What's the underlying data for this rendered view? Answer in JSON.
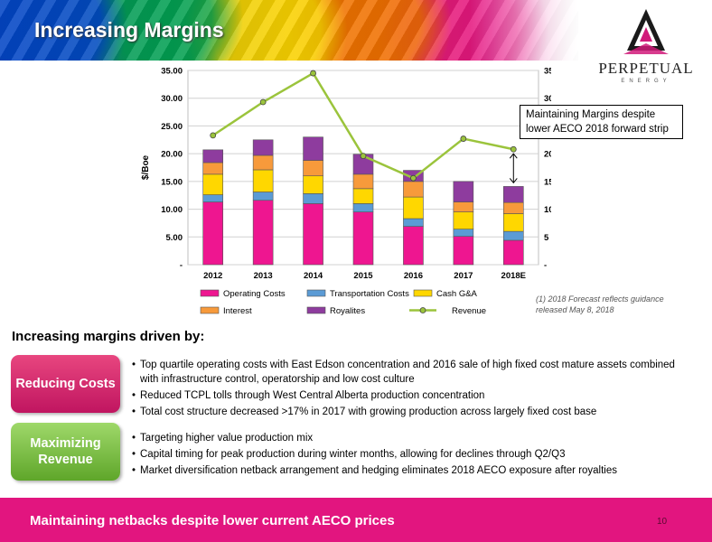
{
  "header": {
    "title": "Increasing Margins"
  },
  "logo": {
    "name": "PERPETUAL",
    "sub": "ENERGY"
  },
  "chart_data": {
    "type": "bar",
    "stacked": true,
    "categories": [
      "2012",
      "2013",
      "2014",
      "2015",
      "2016",
      "2017",
      "2018E"
    ],
    "series": [
      {
        "name": "Operating Costs",
        "values": [
          11.3,
          11.6,
          11.0,
          9.5,
          6.9,
          5.1,
          4.4
        ],
        "color": "#ee1690"
      },
      {
        "name": "Transportation Costs",
        "values": [
          1.3,
          1.5,
          1.8,
          1.5,
          1.4,
          1.3,
          1.6
        ],
        "color": "#5b9bd5"
      },
      {
        "name": "Cash G&A",
        "values": [
          3.7,
          4.0,
          3.2,
          2.7,
          3.9,
          3.1,
          3.2
        ],
        "color": "#ffd700"
      },
      {
        "name": "Interest",
        "values": [
          2.1,
          2.6,
          2.8,
          2.6,
          2.8,
          1.8,
          2.0
        ],
        "color": "#f79a3b"
      },
      {
        "name": "Royalites",
        "values": [
          2.3,
          2.8,
          4.2,
          3.6,
          2.0,
          3.7,
          2.9
        ],
        "color": "#8e3c9e"
      }
    ],
    "line_series": {
      "name": "Revenue",
      "values": [
        23.3,
        29.3,
        34.5,
        19.6,
        15.6,
        22.7,
        20.8
      ],
      "color": "#9bc43c"
    },
    "ylabel": "$/Boe",
    "ylabel_right": "$/Boe",
    "ylim": [
      0,
      35
    ],
    "yticks_left": [
      "-",
      "5.00",
      "10.00",
      "15.00",
      "20.00",
      "25.00",
      "30.00",
      "35.00"
    ],
    "yticks_right": [
      "-",
      "5",
      "10",
      "15",
      "20",
      "25",
      "30",
      "35"
    ],
    "grid": true,
    "legend": "bottom",
    "annotation": "Maintaining Margins despite lower AECO 2018 forward strip"
  },
  "footnote": "(1)  2018 Forecast reflects guidance released May 8, 2018",
  "subheading": "Increasing margins driven by:",
  "sections": [
    {
      "label": "Reducing Costs",
      "bullets": [
        "Top quartile operating costs with East Edson concentration and 2016 sale of high fixed cost mature assets combined with infrastructure control, operatorship and low cost culture",
        "Reduced TCPL tolls through West Central Alberta production concentration",
        "Total cost structure decreased >17% in 2017 with growing production across largely fixed cost base"
      ]
    },
    {
      "label": "Maximizing Revenue",
      "bullets": [
        "Targeting higher value production mix",
        "Capital timing for peak production during winter months, allowing for declines through Q2/Q3",
        "Market diversification netback arrangement and hedging eliminates 2018 AECO exposure after royalties"
      ]
    }
  ],
  "footer": {
    "text": "Maintaining netbacks despite lower current AECO prices",
    "page": "10"
  }
}
